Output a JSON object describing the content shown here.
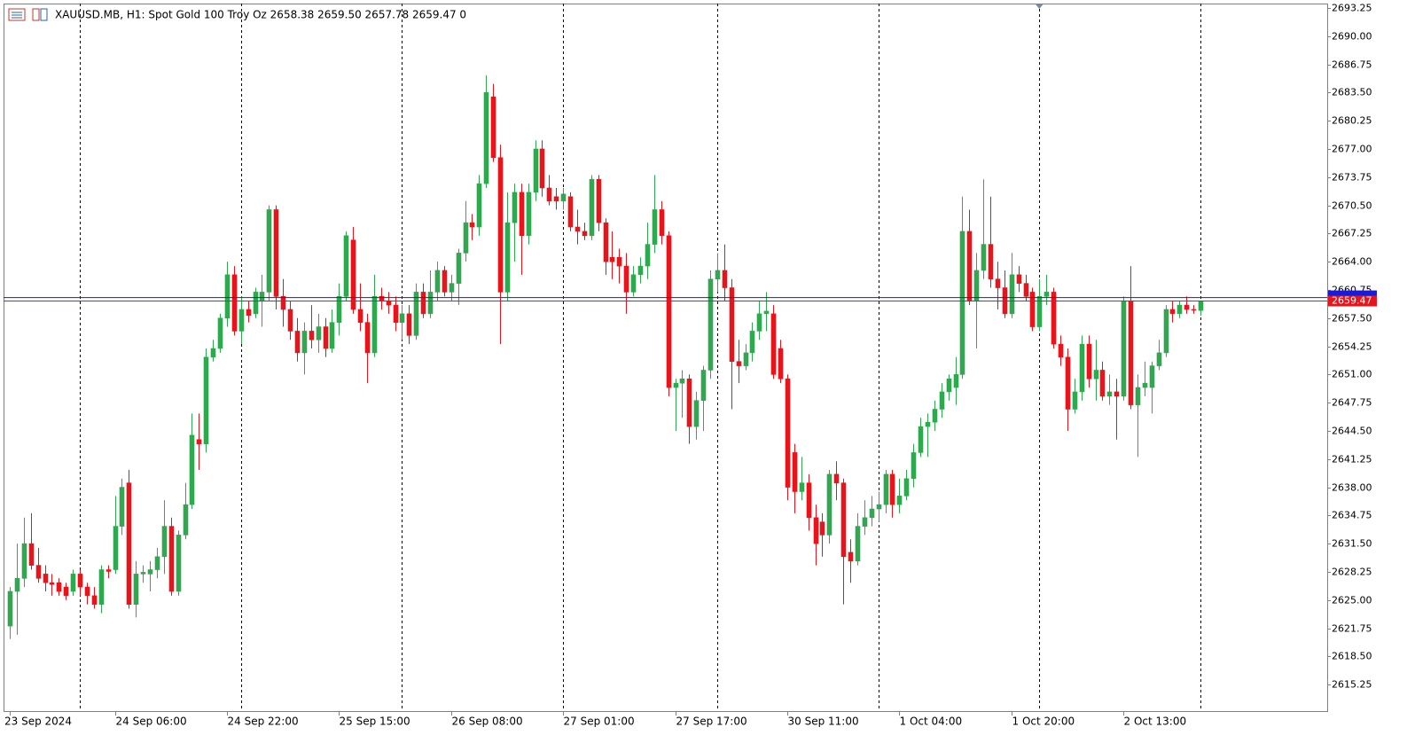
{
  "chart_data": {
    "type": "candlestick",
    "title": "XAUUSD.MB, H1:  Spot Gold 100 Troy Oz  2658.38 2659.50 2657.78 2659.47  0",
    "x": [
      "23 Sep 2024",
      null,
      null,
      null,
      null,
      null,
      null,
      null,
      null,
      null,
      null,
      null,
      null,
      null,
      null,
      "24 Sep 06:00",
      null,
      null,
      null,
      null,
      null,
      null,
      null,
      null,
      null,
      null,
      null,
      null,
      null,
      null,
      null,
      "24 Sep 22:00",
      null,
      null,
      null,
      null,
      null,
      null,
      null,
      null,
      null,
      null,
      null,
      null,
      null,
      null,
      null,
      "25 Sep 15:00",
      null,
      null,
      null,
      null,
      null,
      null,
      null,
      null,
      null,
      null,
      null,
      null,
      null,
      null,
      null,
      "26 Sep 08:00",
      null,
      null,
      null,
      null,
      null,
      null,
      null,
      null,
      null,
      null,
      null,
      null,
      null,
      null,
      null,
      "27 Sep 01:00",
      null,
      null,
      null,
      null,
      null,
      null,
      null,
      null,
      null,
      null,
      null,
      null,
      null,
      null,
      null,
      "27 Sep 17:00",
      null,
      null,
      null,
      null,
      null,
      null,
      null,
      null,
      null,
      null,
      null,
      null,
      null,
      null,
      null,
      "30 Sep 11:00",
      null,
      null,
      null,
      null,
      null,
      null,
      null,
      null,
      null,
      null,
      null,
      null,
      null,
      null,
      null,
      "1 Oct 04:00",
      null,
      null,
      null,
      null,
      null,
      null,
      null,
      null,
      null,
      null,
      null,
      null,
      null,
      null,
      null,
      "1 Oct 20:00",
      null,
      null,
      null,
      null,
      null,
      null,
      null,
      null,
      null,
      null,
      null,
      null,
      null,
      null,
      null,
      "2 Oct 13:00",
      null,
      null,
      null,
      null,
      null,
      null,
      null,
      null,
      null,
      null,
      null
    ],
    "open": [
      2622,
      2626,
      2627.5,
      2631.5,
      2629,
      2628,
      2627,
      2627,
      2626.5,
      2626,
      2628,
      2626.5,
      2625.5,
      2624.5,
      2628.5,
      2628.5,
      2633.5,
      2638.5,
      2624.5,
      2628,
      2628,
      2628.5,
      2630,
      2633.5,
      2626,
      2632.5,
      2636,
      2643.5,
      2643,
      2653,
      2654,
      2657.5,
      2662.5,
      2656,
      2658.5,
      2658,
      2659.5,
      2660.5,
      2670,
      2660,
      2658.5,
      2656,
      2653.5,
      2656,
      2655,
      2656.5,
      2654,
      2657,
      2660,
      2666.5,
      2658.5,
      2657,
      2653.5,
      2660,
      2659.5,
      2659,
      2657,
      2658,
      2655.5,
      2660.5,
      2658,
      2660.5,
      2663,
      2660.5,
      2661.5,
      2665,
      2668.5,
      2668,
      2673,
      2683,
      2676,
      2660.5,
      2668.5,
      2672,
      2667,
      2672,
      2677,
      2672.5,
      2671.5,
      2671,
      2671.5,
      2668,
      2667.5,
      2667,
      2673.5,
      2668.5,
      2664.5,
      2664.5,
      2663.5,
      2660.5,
      2662.5,
      2663.5,
      2666,
      2670,
      2667,
      2649.5,
      2650,
      2650.5,
      2645,
      2648,
      2651.5,
      2662,
      2663,
      2661,
      2652.5,
      2652,
      2653.5,
      2656,
      2658,
      2658,
      2654,
      2650.5,
      2642,
      2637.5,
      2638.5,
      2634.5,
      2634,
      2632.5,
      2639.5,
      2638.5,
      2630.5,
      2629.5,
      2633.5,
      2634.5,
      2635.5,
      2636,
      2639.5,
      2636,
      2637,
      2639,
      2642,
      2645,
      2645.5,
      2647,
      2649,
      2649.5,
      2651,
      2667.5,
      2659.5,
      2663,
      2666,
      2662,
      2661,
      2658,
      2662.5,
      2661.5,
      2660.5,
      2656.5,
      2660,
      2660.5,
      2654.5,
      2653,
      2647,
      2649,
      2654.5,
      2650.5,
      2651.5,
      2648.5,
      2649,
      2648.5,
      2659.5,
      2647.5,
      2649.5,
      2649.5,
      2652,
      2653.5,
      2658.5,
      2658,
      2659,
      2658.5,
      2658.38
    ],
    "high": [
      2626.5,
      2631.5,
      2634.5,
      2635,
      2631,
      2629,
      2628,
      2627.5,
      2627,
      2628.5,
      2628.5,
      2627,
      2626.5,
      2629,
      2629,
      2637,
      2639,
      2640,
      2629.5,
      2629,
      2629.5,
      2631,
      2636.5,
      2634.5,
      2633,
      2638.5,
      2646.5,
      2646.5,
      2654,
      2655,
      2658,
      2664,
      2663.5,
      2660,
      2659.5,
      2661,
      2662.5,
      2670.5,
      2670.5,
      2662,
      2659.5,
      2657.5,
      2657,
      2659,
      2658,
      2657.5,
      2658.5,
      2661.5,
      2667.5,
      2668,
      2661.5,
      2658,
      2662.5,
      2661,
      2660.5,
      2660,
      2659,
      2659,
      2661.5,
      2661.5,
      2663,
      2664,
      2663.5,
      2662.5,
      2665.5,
      2671,
      2669.5,
      2674,
      2685.5,
      2684.5,
      2677.5,
      2672,
      2673,
      2673,
      2673,
      2678,
      2678,
      2674,
      2672.5,
      2672.5,
      2672,
      2670,
      2668.5,
      2674,
      2674,
      2669,
      2667.5,
      2665.5,
      2665,
      2663.5,
      2664.5,
      2668.5,
      2674,
      2671,
      2667.5,
      2650.5,
      2651.5,
      2651,
      2649,
      2652,
      2663,
      2665,
      2666,
      2662,
      2655,
      2654.5,
      2657,
      2659.5,
      2660.5,
      2659,
      2655,
      2651,
      2643,
      2641.5,
      2639.5,
      2636,
      2635,
      2640,
      2641,
      2639,
      2632,
      2635,
      2636.5,
      2637,
      2637.5,
      2640,
      2640,
      2639,
      2640,
      2643,
      2646,
      2646.5,
      2648,
      2650,
      2651,
      2653,
      2671.5,
      2670,
      2665,
      2673.5,
      2671.5,
      2664,
      2663,
      2665,
      2663.5,
      2662.5,
      2661,
      2662,
      2662.5,
      2661,
      2655.5,
      2654,
      2650.5,
      2655.5,
      2655.5,
      2655,
      2652.5,
      2651,
      2650.5,
      2660,
      2663.5,
      2651,
      2652.5,
      2652.5,
      2655,
      2659,
      2659.5,
      2659.5,
      2660,
      2659,
      2659.5
    ],
    "low": [
      2620.5,
      2621,
      2626.5,
      2628.5,
      2627,
      2626,
      2625.5,
      2625.5,
      2625,
      2625.5,
      2625.5,
      2624.5,
      2624,
      2623.5,
      2627.5,
      2628,
      2632.5,
      2624,
      2623,
      2627,
      2626,
      2627.5,
      2628,
      2625.5,
      2625.5,
      2632,
      2635.5,
      2640,
      2642,
      2652.5,
      2653.5,
      2656.5,
      2655.5,
      2654.5,
      2657,
      2657.5,
      2656.5,
      2659.5,
      2658.5,
      2656.5,
      2655,
      2652.5,
      2651,
      2654,
      2653.5,
      2653,
      2653.5,
      2655.5,
      2659.5,
      2658,
      2656,
      2650,
      2653,
      2658.5,
      2658,
      2656,
      2655,
      2654.5,
      2655,
      2657.5,
      2657.5,
      2659.5,
      2660,
      2659.5,
      2659,
      2664,
      2666.5,
      2667,
      2672.5,
      2675.5,
      2654.5,
      2659.5,
      2664,
      2662.5,
      2666,
      2671,
      2671.5,
      2670.5,
      2670,
      2670,
      2667.5,
      2666,
      2666.5,
      2666.5,
      2667.5,
      2662.5,
      2662,
      2661.5,
      2658,
      2660,
      2661.5,
      2662,
      2665,
      2666,
      2648.5,
      2644.5,
      2646,
      2643,
      2643.5,
      2644.5,
      2650.5,
      2660.5,
      2659.5,
      2647,
      2650,
      2651.5,
      2652.5,
      2655,
      2656,
      2650.5,
      2650,
      2636.5,
      2635,
      2636.5,
      2633,
      2629,
      2630,
      2631.5,
      2636.5,
      2624.5,
      2627,
      2629,
      2632.5,
      2633.5,
      2634,
      2635,
      2634.5,
      2635,
      2636.5,
      2638,
      2641.5,
      2641.5,
      2644.5,
      2646,
      2648,
      2647.5,
      2650.5,
      2659,
      2654,
      2662,
      2661,
      2658.5,
      2657.5,
      2657.5,
      2660.5,
      2659.5,
      2656,
      2656,
      2659,
      2654,
      2652,
      2644.5,
      2646.5,
      2648,
      2649.5,
      2648,
      2648,
      2647.5,
      2643.5,
      2648,
      2647,
      2641.5,
      2648.5,
      2646.5,
      2651.5,
      2653,
      2657,
      2657.5,
      2658,
      2658,
      2657.78
    ],
    "close": [
      2626,
      2627.5,
      2631.5,
      2629,
      2627.5,
      2627,
      2626.8,
      2626,
      2625.5,
      2628,
      2626.5,
      2625.5,
      2624.5,
      2628.5,
      2628.3,
      2633.5,
      2638,
      2624.5,
      2628,
      2628.2,
      2628.5,
      2630,
      2633.5,
      2626,
      2632.5,
      2636,
      2644,
      2643,
      2653,
      2654,
      2657.5,
      2662.5,
      2656,
      2658.5,
      2657.8,
      2660.5,
      2660.5,
      2670,
      2660,
      2658.5,
      2656,
      2653.5,
      2656,
      2655,
      2656.5,
      2654,
      2657,
      2660,
      2667,
      2658.5,
      2657,
      2653.5,
      2660,
      2659.5,
      2659,
      2657,
      2658,
      2655.5,
      2660.5,
      2658,
      2660.5,
      2663,
      2660.5,
      2661.5,
      2665,
      2668.5,
      2668,
      2673,
      2683.5,
      2676,
      2660.5,
      2668.5,
      2672,
      2667,
      2672,
      2677,
      2672.5,
      2671,
      2671,
      2671.8,
      2668,
      2667.5,
      2667,
      2673.5,
      2668.5,
      2664,
      2664,
      2663.5,
      2660.5,
      2662.5,
      2663.5,
      2666,
      2670,
      2667,
      2649.5,
      2650,
      2650.5,
      2645,
      2648,
      2651.5,
      2662,
      2663,
      2661,
      2652.5,
      2652,
      2653.5,
      2656,
      2658,
      2658.3,
      2651,
      2650.5,
      2638,
      2637.5,
      2638.5,
      2634.5,
      2631.5,
      2632.5,
      2639.5,
      2638.5,
      2630,
      2629.5,
      2633.5,
      2634.5,
      2635.5,
      2636,
      2639.5,
      2636,
      2637,
      2639,
      2642,
      2645,
      2645.5,
      2647,
      2649,
      2650.5,
      2651,
      2667.5,
      2659.5,
      2663,
      2666,
      2662,
      2661,
      2658,
      2662.5,
      2661.5,
      2660,
      2656.5,
      2660,
      2660.5,
      2654.5,
      2653,
      2647,
      2649,
      2654.5,
      2650.5,
      2651.5,
      2648.5,
      2649,
      2648.5,
      2659.5,
      2647.5,
      2649.5,
      2650,
      2652,
      2653.5,
      2658.5,
      2658,
      2659,
      2658.5,
      2658.4,
      2659.47
    ],
    "up_color": "#2fa84f",
    "down_color": "#e8141b",
    "bid": 2659.47,
    "bid_color": "#e8141b",
    "ask": 2659.87,
    "ask_color": "#1a1adb",
    "ylim": [
      2612.2,
      2693.76
    ],
    "yticks": [
      2615.25,
      {
        "value": 2618.5,
        "label": "2618.50"
      },
      2621.75,
      {
        "value": 2625,
        "label": "2625.00"
      },
      2628.25,
      {
        "value": 2631.5,
        "label": "2631.50"
      },
      2634.75,
      {
        "value": 2638,
        "label": "2638.00"
      },
      2641.25,
      {
        "value": 2644.5,
        "label": "2644.50"
      },
      2647.75,
      {
        "value": 2651,
        "label": "2651.00"
      },
      2654.25,
      {
        "value": 2657.5,
        "label": "2657.50"
      },
      2660.75,
      {
        "value": 2664,
        "label": "2664.00"
      },
      2667.25,
      {
        "value": 2670.5,
        "label": "2670.50"
      },
      2673.75,
      {
        "value": 2677,
        "label": "2677.00"
      },
      2680.25,
      {
        "value": 2683.5,
        "label": "2683.50"
      },
      2686.75,
      {
        "value": 2690,
        "label": "2690.00"
      },
      2693.25
    ]
  }
}
